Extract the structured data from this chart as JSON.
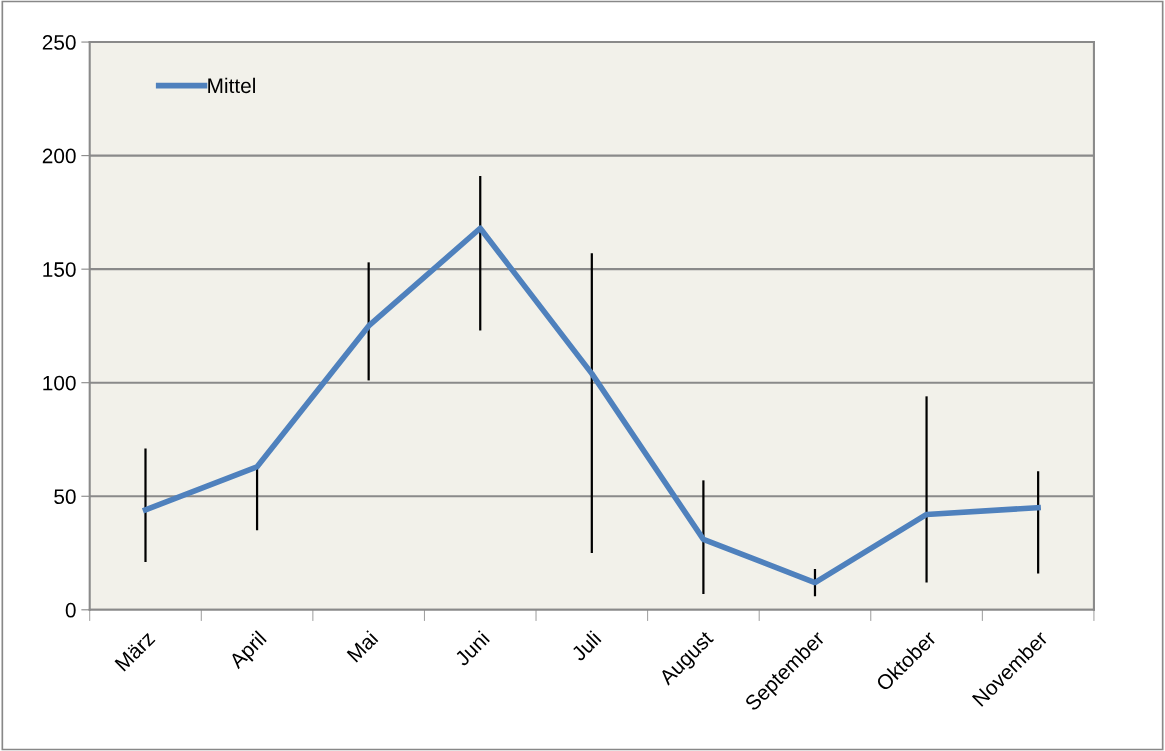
{
  "chart_data": {
    "type": "line",
    "categories": [
      "März",
      "April",
      "Mai",
      "Juni",
      "Juli",
      "August",
      "September",
      "Oktober",
      "November"
    ],
    "series": [
      {
        "name": "Mittel",
        "color": "#4f81bd",
        "values": [
          44,
          63,
          125,
          168,
          104,
          31,
          12,
          42,
          45
        ],
        "errors": [
          [
            21,
            71
          ],
          [
            35,
            63
          ],
          [
            101,
            153
          ],
          [
            123,
            191
          ],
          [
            25,
            157
          ],
          [
            7,
            57
          ],
          [
            6,
            18
          ],
          [
            12,
            94
          ],
          [
            16,
            61
          ]
        ]
      }
    ],
    "ylim": [
      0,
      250
    ],
    "yticks": [
      0,
      50,
      100,
      150,
      200,
      250
    ],
    "grid": "y",
    "legend": "top left",
    "line_style": "solid"
  }
}
